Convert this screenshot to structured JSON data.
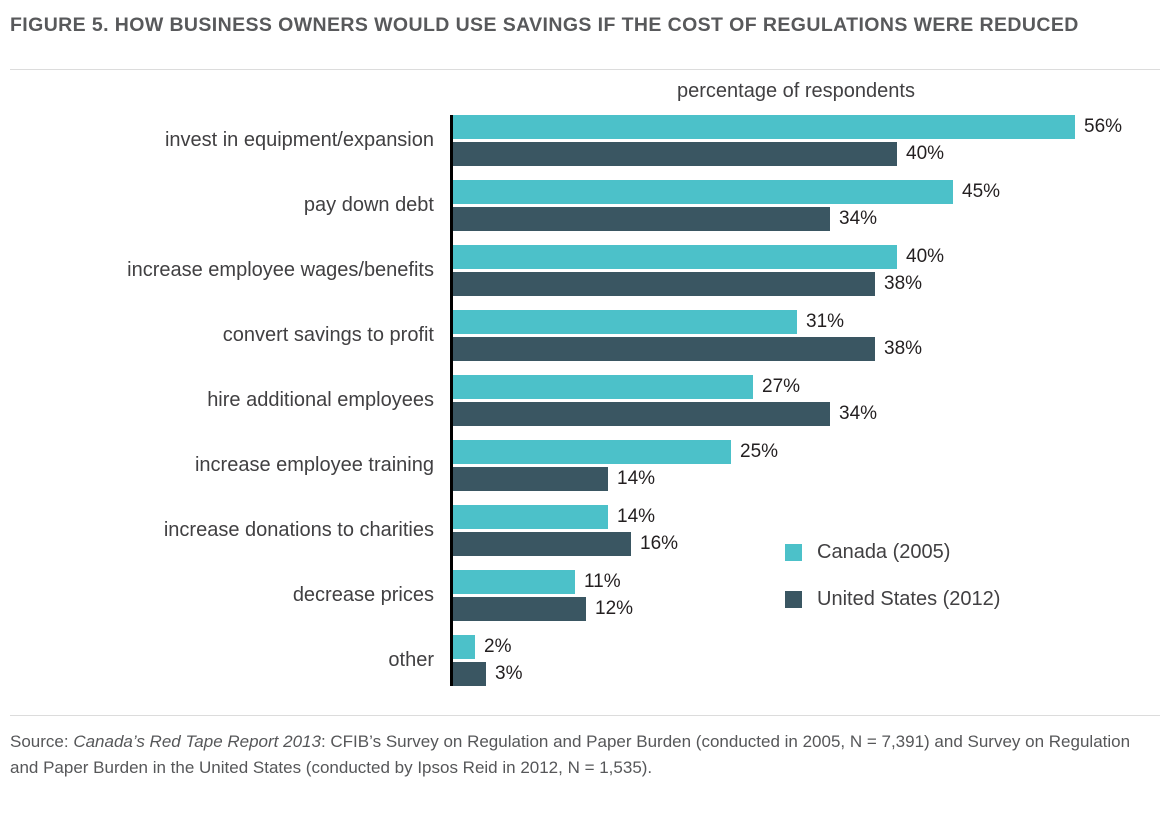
{
  "figure": {
    "title": "FIGURE 5. HOW BUSINESS OWNERS WOULD USE SAVINGS IF THE COST OF REGULATIONS WERE REDUCED"
  },
  "chart_data": {
    "type": "bar",
    "orientation": "horizontal",
    "axis_title": "percentage of respondents",
    "categories": [
      "invest in equipment/expansion",
      "pay down debt",
      "increase employee wages/benefits",
      "convert savings to profit",
      "hire additional employees",
      "increase employee training",
      "increase donations to charities",
      "decrease prices",
      "other"
    ],
    "series": [
      {
        "name": "Canada (2005)",
        "color": "#4cc1c9",
        "values": [
          56,
          45,
          40,
          31,
          27,
          25,
          14,
          11,
          2
        ]
      },
      {
        "name": "United States (2012)",
        "color": "#3a5662",
        "values": [
          40,
          34,
          38,
          38,
          34,
          14,
          16,
          12,
          3
        ]
      }
    ],
    "value_suffix": "%",
    "xlim": [
      0,
      60
    ],
    "grid": false,
    "legend_position": "lower-right-inside"
  },
  "source": {
    "prefix": "Source: ",
    "italic": "Canada’s Red Tape Report 2013",
    "rest": ": CFIB’s Survey on Regulation and Paper Burden (conducted in 2005, N = 7,391) and Survey on Regulation and Paper Burden in the United States (conducted by Ipsos Reid in 2012, N = 1,535)."
  }
}
